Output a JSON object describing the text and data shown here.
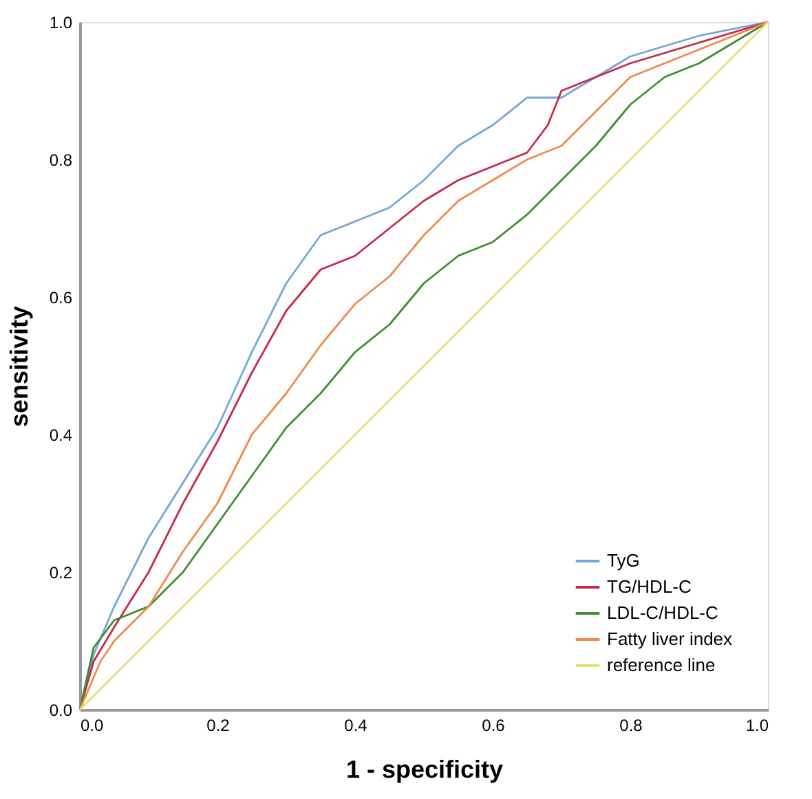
{
  "chart_data": {
    "type": "line",
    "xlabel": "1 -  specificity",
    "ylabel": "sensitivity",
    "xlim": [
      0,
      1
    ],
    "ylim": [
      0,
      1
    ],
    "xticks": [
      {
        "value": 0,
        "label": "0.0"
      },
      0.2,
      0.4,
      0.6,
      0.8,
      {
        "value": 1,
        "label": "1.0"
      }
    ],
    "yticks": [
      {
        "value": 0,
        "label": "0.0"
      },
      0.2,
      0.4,
      0.6,
      0.8,
      {
        "value": 1,
        "label": "1.0"
      }
    ],
    "grid": false,
    "legend": "bottom right",
    "marker": "none",
    "line_style": "solid",
    "series": [
      {
        "name": "TyG",
        "color": "#76a5d8",
        "x": [
          0,
          0.02,
          0.05,
          0.1,
          0.15,
          0.2,
          0.25,
          0.3,
          0.35,
          0.4,
          0.45,
          0.5,
          0.55,
          0.6,
          0.65,
          0.7,
          0.75,
          0.8,
          0.9,
          1
        ],
        "values": [
          0,
          0.08,
          0.15,
          0.25,
          0.33,
          0.41,
          0.52,
          0.62,
          0.69,
          0.71,
          0.73,
          0.77,
          0.82,
          0.85,
          0.89,
          0.89,
          0.92,
          0.95,
          0.98,
          1
        ]
      },
      {
        "name": "TG/HDL-C",
        "color": "#c8284a",
        "x": [
          0,
          0.02,
          0.05,
          0.1,
          0.15,
          0.2,
          0.25,
          0.3,
          0.35,
          0.4,
          0.45,
          0.5,
          0.55,
          0.6,
          0.65,
          0.68,
          0.7,
          0.75,
          0.8,
          0.9,
          1
        ],
        "values": [
          0,
          0.07,
          0.12,
          0.2,
          0.3,
          0.39,
          0.49,
          0.58,
          0.64,
          0.66,
          0.7,
          0.74,
          0.77,
          0.79,
          0.81,
          0.85,
          0.9,
          0.92,
          0.94,
          0.97,
          1
        ]
      },
      {
        "name": "LDL-C/HDL-C",
        "color": "#3e8e2e",
        "x": [
          0,
          0.02,
          0.05,
          0.1,
          0.15,
          0.2,
          0.25,
          0.3,
          0.35,
          0.4,
          0.45,
          0.5,
          0.55,
          0.6,
          0.65,
          0.7,
          0.75,
          0.8,
          0.85,
          0.9,
          0.95,
          1
        ],
        "values": [
          0,
          0.09,
          0.13,
          0.15,
          0.2,
          0.27,
          0.34,
          0.41,
          0.46,
          0.52,
          0.56,
          0.62,
          0.66,
          0.68,
          0.72,
          0.77,
          0.82,
          0.88,
          0.92,
          0.94,
          0.97,
          1
        ]
      },
      {
        "name": "Fatty liver index",
        "color": "#f08a4b",
        "x": [
          0,
          0.03,
          0.05,
          0.1,
          0.15,
          0.2,
          0.25,
          0.3,
          0.35,
          0.4,
          0.45,
          0.5,
          0.55,
          0.6,
          0.65,
          0.7,
          0.75,
          0.8,
          0.9,
          1
        ],
        "values": [
          0,
          0.07,
          0.1,
          0.15,
          0.23,
          0.3,
          0.4,
          0.46,
          0.53,
          0.59,
          0.63,
          0.69,
          0.74,
          0.77,
          0.8,
          0.82,
          0.87,
          0.92,
          0.96,
          1
        ]
      },
      {
        "name": "reference line",
        "color": "#e8e070",
        "x": [
          0,
          1
        ],
        "values": [
          0,
          1
        ]
      }
    ]
  }
}
